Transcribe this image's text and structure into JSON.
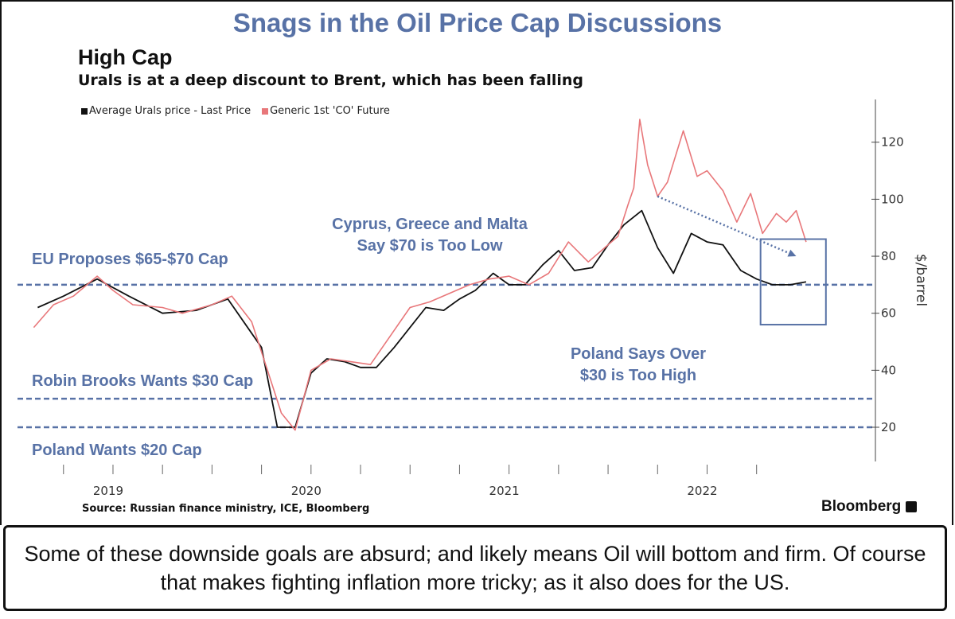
{
  "header": {
    "title": "Snags in the Oil Price Cap Discussions",
    "subtitle": "High Cap",
    "description": "Urals is at a deep discount to Brent, which has been falling"
  },
  "footer": {
    "source": "Source: Russian finance ministry, ICE, Bloomberg",
    "brand": "Bloomberg"
  },
  "caption": "Some of these downside goals are absurd; and likely means Oil will bottom and firm. Of course that makes fighting inflation more tricky; as it also does for the US.",
  "colors": {
    "urals": "#111111",
    "brent": "#e8777a",
    "annotation": "#5872a6"
  },
  "chart_data": {
    "type": "line",
    "ylabel": "$/barrel",
    "ylim": [
      8,
      135
    ],
    "y_ticks": [
      20,
      40,
      60,
      80,
      100,
      120
    ],
    "x_ticks": [
      "2019",
      "2020",
      "2021",
      "2022"
    ],
    "xlim": [
      2018.55,
      2022.85
    ],
    "grid": false,
    "legend_position": "top-left",
    "series": [
      {
        "name": "Average Urals price - Last Price",
        "key": "urals",
        "x": [
          2018.62,
          2018.75,
          2018.92,
          2019.08,
          2019.25,
          2019.42,
          2019.58,
          2019.75,
          2019.83,
          2019.92,
          2020.0,
          2020.08,
          2020.17,
          2020.25,
          2020.33,
          2020.42,
          2020.5,
          2020.58,
          2020.67,
          2020.75,
          2020.83,
          2020.92,
          2021.0,
          2021.08,
          2021.17,
          2021.25,
          2021.33,
          2021.42,
          2021.5,
          2021.58,
          2021.67,
          2021.75,
          2021.83,
          2021.92,
          2022.0,
          2022.08,
          2022.17,
          2022.25,
          2022.33,
          2022.42,
          2022.5
        ],
        "values": [
          62,
          66,
          72,
          66,
          60,
          61,
          65,
          48,
          20,
          20,
          39,
          44,
          43,
          41,
          41,
          48,
          55,
          62,
          61,
          65,
          68,
          74,
          70,
          70,
          77,
          82,
          75,
          76,
          84,
          91,
          96,
          83,
          74,
          88,
          85,
          84,
          75,
          72,
          70,
          70,
          71
        ]
      },
      {
        "name": "Generic 1st 'CO' Future",
        "key": "brent",
        "x": [
          2018.6,
          2018.7,
          2018.8,
          2018.92,
          2019.0,
          2019.1,
          2019.25,
          2019.35,
          2019.5,
          2019.6,
          2019.7,
          2019.78,
          2019.85,
          2019.92,
          2020.0,
          2020.1,
          2020.2,
          2020.3,
          2020.4,
          2020.5,
          2020.6,
          2020.7,
          2020.8,
          2020.9,
          2021.0,
          2021.1,
          2021.2,
          2021.3,
          2021.4,
          2021.5,
          2021.55,
          2021.6,
          2021.63,
          2021.66,
          2021.7,
          2021.75,
          2021.8,
          2021.88,
          2021.95,
          2022.0,
          2022.08,
          2022.15,
          2022.22,
          2022.28,
          2022.35,
          2022.4,
          2022.45,
          2022.5
        ],
        "values": [
          55,
          63,
          66,
          73,
          68,
          63,
          62,
          60,
          63,
          66,
          57,
          40,
          25,
          19,
          40,
          44,
          43,
          42,
          52,
          62,
          64,
          67,
          70,
          72,
          73,
          70,
          74,
          85,
          78,
          84,
          87,
          98,
          104,
          128,
          112,
          101,
          106,
          124,
          108,
          110,
          103,
          92,
          102,
          88,
          95,
          92,
          96,
          85
        ]
      }
    ],
    "reference_lines": [
      {
        "label": "EU Proposes $65-$70 Cap",
        "value": 70
      },
      {
        "label": "Robin Brooks Wants $30 Cap",
        "value": 30
      },
      {
        "label": "Poland Wants $20 Cap",
        "value": 20
      }
    ],
    "annotations": [
      {
        "line1": "Cyprus, Greece and Malta",
        "line2": "Say $70 is Too Low"
      },
      {
        "line1": "Poland Says Over",
        "line2": "$30 is Too High"
      }
    ]
  }
}
